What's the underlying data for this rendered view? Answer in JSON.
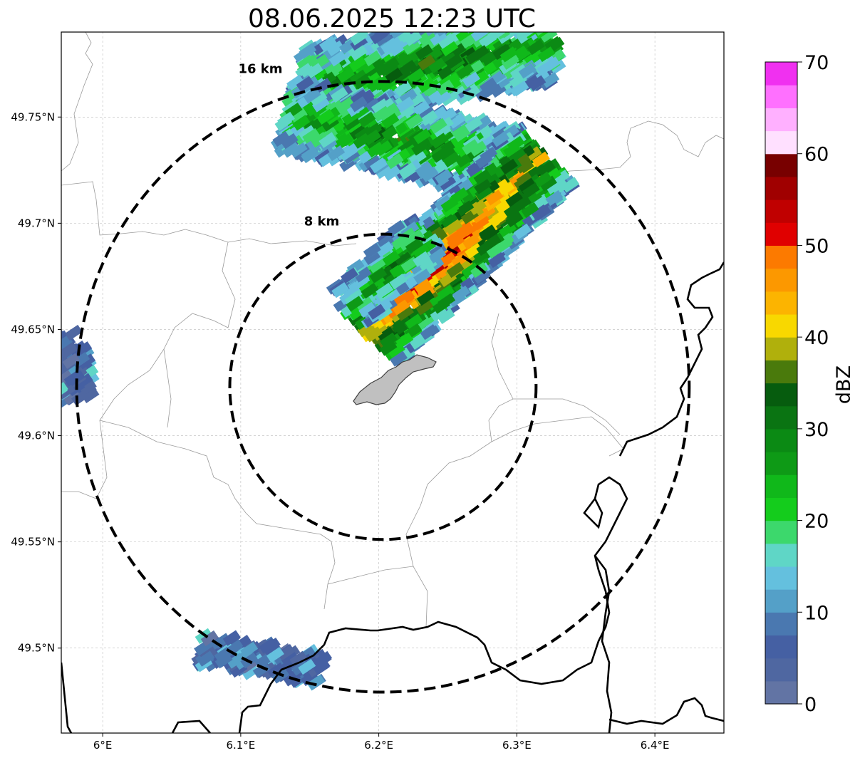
{
  "title": "08.06.2025 12:23 UTC",
  "map": {
    "lon_range": [
      5.97,
      6.45
    ],
    "lat_range": [
      49.46,
      49.79
    ],
    "radar_center": {
      "lon": 6.203,
      "lat": 49.623
    },
    "lon_ticks": [
      {
        "value": 6.0,
        "label": "6°E"
      },
      {
        "value": 6.1,
        "label": "6.1°E"
      },
      {
        "value": 6.2,
        "label": "6.2°E"
      },
      {
        "value": 6.3,
        "label": "6.3°E"
      },
      {
        "value": 6.4,
        "label": "6.4°E"
      }
    ],
    "lat_ticks": [
      {
        "value": 49.75,
        "label": "49.75°N"
      },
      {
        "value": 49.7,
        "label": "49.7°N"
      },
      {
        "value": 49.65,
        "label": "49.65°N"
      },
      {
        "value": 49.6,
        "label": "49.6°N"
      },
      {
        "value": 49.55,
        "label": "49.55°N"
      },
      {
        "value": 49.5,
        "label": "49.5°N"
      }
    ],
    "range_rings": [
      {
        "label": "8 km",
        "km": 8
      },
      {
        "label": "16 km",
        "km": 16
      }
    ],
    "grid": true
  },
  "colorbar": {
    "label": "dBZ",
    "min": 0,
    "max": 70,
    "step": 2.5,
    "tick_labels": [
      "0",
      "10",
      "20",
      "30",
      "40",
      "50",
      "60",
      "70"
    ],
    "colors": [
      "#6274a4",
      "#4f67a1",
      "#4560a3",
      "#4a78b0",
      "#54a0c8",
      "#64c0de",
      "#5fd6c6",
      "#3cd86c",
      "#14cc1c",
      "#10b81a",
      "#0e9a16",
      "#0b8a14",
      "#0a7412",
      "#065c0e",
      "#4a7a0c",
      "#b0b00c",
      "#f8d800",
      "#fcb400",
      "#fc9800",
      "#fc7a00",
      "#e00000",
      "#c00000",
      "#a00000",
      "#780000",
      "#ffe0ff",
      "#ffb0ff",
      "#ff70ff",
      "#f030f0"
    ]
  }
}
